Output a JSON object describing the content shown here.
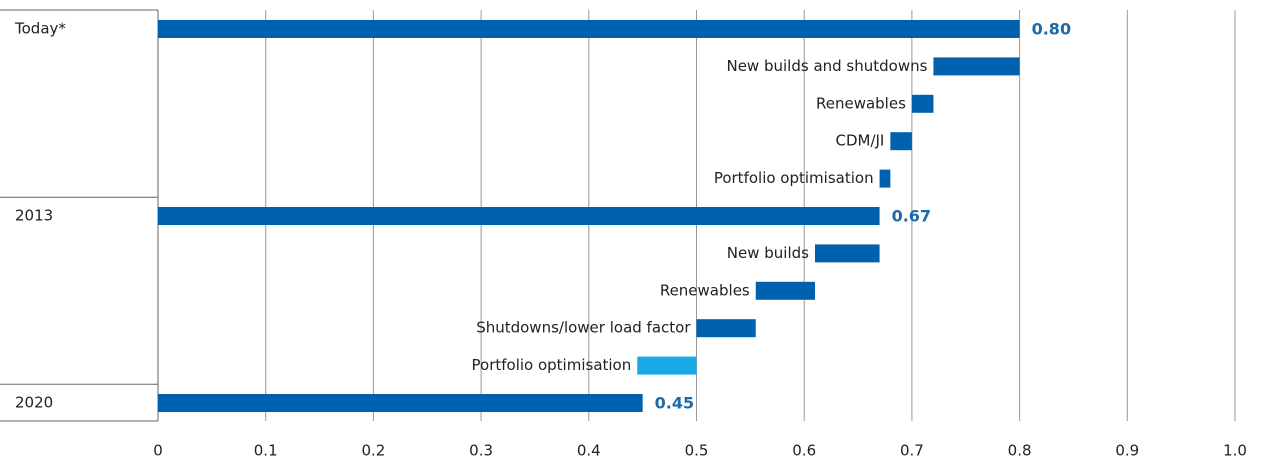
{
  "chart_data": {
    "type": "waterfall",
    "categories": [
      "Today*",
      "New builds and shutdowns",
      "Renewables",
      "CDM/JI",
      "Portfolio optimisation",
      "2013",
      "New builds",
      "Renewables",
      "Shutdowns/lower load factor",
      "Portfolio optimisation",
      "2020"
    ],
    "measure": [
      "total",
      "relative",
      "relative",
      "relative",
      "relative",
      "total",
      "relative",
      "relative",
      "relative",
      "relative",
      "total"
    ],
    "values": [
      0.8,
      -0.08,
      -0.02,
      -0.02,
      -0.01,
      0.67,
      -0.06,
      -0.055,
      -0.055,
      -0.055,
      0.45
    ],
    "value_labels": [
      "0.80",
      null,
      null,
      null,
      null,
      "0.67",
      null,
      null,
      null,
      null,
      "0.45"
    ],
    "colors": [
      "#0061ae",
      "#0061ae",
      "#0061ae",
      "#0061ae",
      "#0061ae",
      "#0061ae",
      "#0061ae",
      "#0061ae",
      "#0061ae",
      "#18a9e6",
      "#0061ae"
    ],
    "xlim": [
      0,
      1.0
    ],
    "xticks": [
      0,
      0.1,
      0.2,
      0.3,
      0.4,
      0.5,
      0.6,
      0.7,
      0.8,
      0.9,
      {
        "value": 1.0,
        "label": "1.0"
      }
    ],
    "grid": true
  }
}
